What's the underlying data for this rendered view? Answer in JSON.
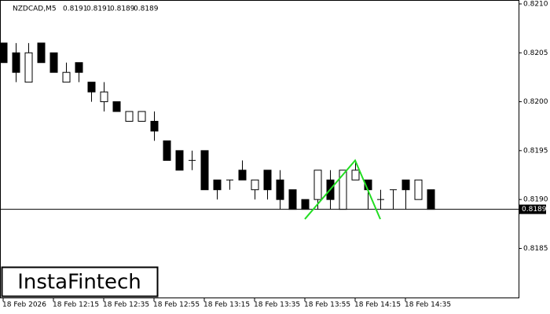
{
  "chart_data": {
    "type": "candlestick",
    "title": "NZDCAD,M5",
    "categories": [
      "18 Feb 2026",
      null,
      null,
      null,
      "18 Feb 12:15",
      null,
      null,
      null,
      "18 Feb 12:35",
      null,
      null,
      null,
      "18 Feb 12:55",
      null,
      null,
      null,
      "18 Feb 13:15",
      null,
      null,
      null,
      "18 Feb 13:35",
      null,
      null,
      null,
      "18 Feb 13:55",
      null,
      null,
      null,
      "18 Feb 14:15",
      null,
      null,
      null,
      "18 Feb 14:35",
      null,
      null
    ],
    "open": [
      0.8206,
      0.8205,
      0.8202,
      0.8206,
      0.8205,
      0.8202,
      0.8204,
      0.8202,
      0.82,
      0.82,
      0.8198,
      0.8198,
      0.8198,
      0.8196,
      0.8195,
      0.8194,
      0.8195,
      0.8192,
      0.8192,
      0.8193,
      0.8191,
      0.8193,
      0.8192,
      0.8191,
      0.819,
      0.819,
      0.8192,
      0.8189,
      0.8192,
      0.8192,
      0.819,
      0.8191,
      0.8192,
      0.819,
      0.8191
    ],
    "high": [
      0.8206,
      0.8206,
      0.8206,
      0.8206,
      0.8205,
      0.8204,
      0.8204,
      0.8202,
      0.8202,
      0.82,
      0.8199,
      0.8199,
      0.8199,
      0.8196,
      0.8195,
      0.8195,
      0.8195,
      0.8192,
      0.8192,
      0.8194,
      0.8192,
      0.8193,
      0.8193,
      0.8191,
      0.819,
      0.8193,
      0.8193,
      0.8193,
      0.8194,
      0.8192,
      0.8191,
      0.8191,
      0.8192,
      0.8192,
      0.8191
    ],
    "low": [
      0.8204,
      0.8202,
      0.8202,
      0.8204,
      0.8203,
      0.8202,
      0.8202,
      0.82,
      0.8199,
      0.8199,
      0.8198,
      0.8198,
      0.8196,
      0.8194,
      0.8193,
      0.8193,
      0.8191,
      0.819,
      0.8191,
      0.8192,
      0.819,
      0.819,
      0.8189,
      0.8189,
      0.8189,
      0.8189,
      0.8189,
      0.8189,
      0.8192,
      0.8189,
      0.8189,
      0.8189,
      0.8189,
      0.819,
      0.8189
    ],
    "close": [
      0.8204,
      0.8203,
      0.8205,
      0.8204,
      0.8203,
      0.8203,
      0.8203,
      0.8201,
      0.8201,
      0.8199,
      0.8199,
      0.8199,
      0.8197,
      0.8194,
      0.8193,
      0.8194,
      0.8191,
      0.8191,
      0.8192,
      0.8192,
      0.8192,
      0.8191,
      0.819,
      0.8189,
      0.8189,
      0.8193,
      0.819,
      0.8193,
      0.8193,
      0.8191,
      0.819,
      0.8191,
      0.8191,
      0.8192,
      0.8189
    ],
    "up_color": "#ffffff",
    "down_color": "#000000",
    "ylim": [
      0.81799,
      0.82104
    ],
    "yticks": [
      {
        "value": 0.821,
        "label": "0.8210"
      },
      {
        "value": 0.8205,
        "label": "0.8205"
      },
      {
        "value": 0.82,
        "label": "0.8200"
      },
      {
        "value": 0.8195,
        "label": "0.8195"
      },
      {
        "value": 0.819,
        "label": "0.8190"
      },
      {
        "value": 0.8185,
        "label": "0.8185"
      }
    ],
    "bid": 0.8189,
    "pattern": {
      "color": "#22dd22",
      "x": [
        24,
        28,
        30
      ],
      "values": [
        0.8188,
        0.8194,
        0.8188
      ]
    }
  },
  "watermark": "InstaFintech"
}
